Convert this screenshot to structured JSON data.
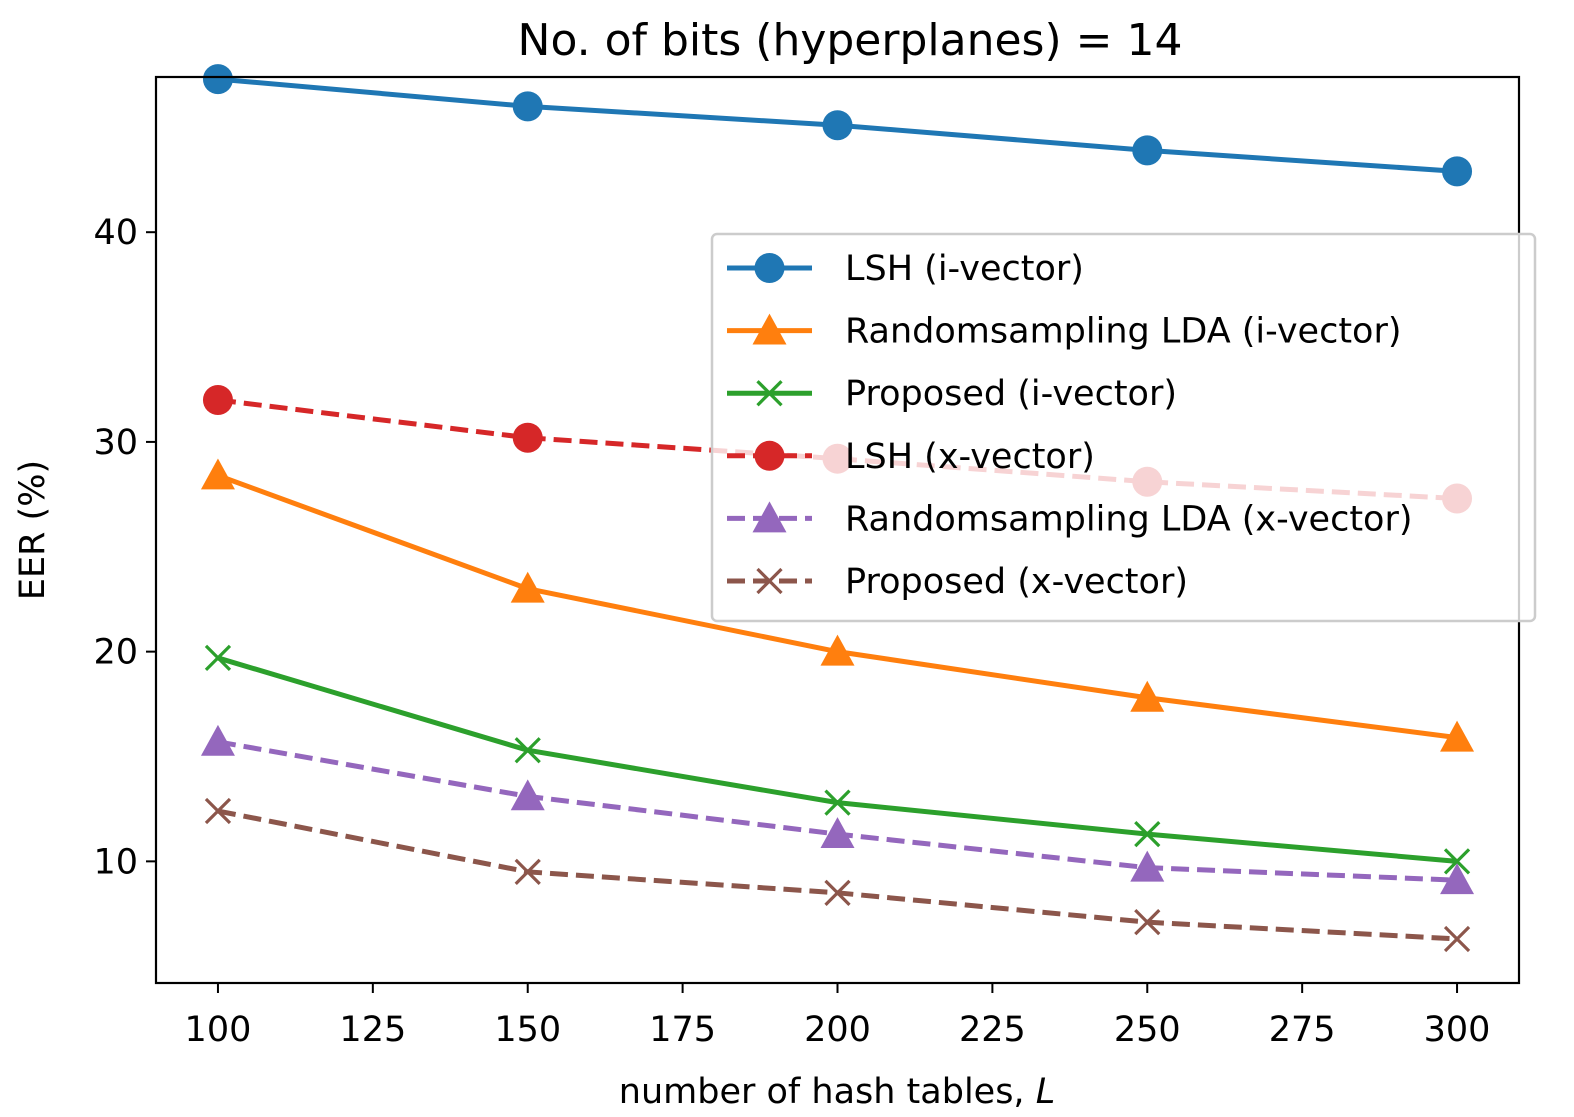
{
  "chart_data": {
    "type": "line",
    "title": "No. of bits (hyperplanes) = 14",
    "xlabel": "number of hash tables, ",
    "xlabel_var": "L",
    "ylabel": "EER (%)",
    "x": [
      100,
      150,
      200,
      250,
      300
    ],
    "xlim": [
      90,
      310
    ],
    "ylim": [
      4.2,
      47.4
    ],
    "xticks": [
      100,
      125,
      150,
      175,
      200,
      225,
      250,
      275,
      300
    ],
    "yticks": [
      10,
      20,
      30,
      40
    ],
    "legend_position": "upper-right",
    "series": [
      {
        "name": "LSH (i-vector)",
        "values": [
          47.3,
          46.0,
          45.1,
          43.9,
          42.9
        ],
        "color": "#1f77b4",
        "marker": "circle",
        "linestyle": "solid"
      },
      {
        "name": "Randomsampling LDA (i-vector)",
        "values": [
          28.4,
          23.0,
          20.0,
          17.8,
          15.9
        ],
        "color": "#ff7f0e",
        "marker": "triangle",
        "linestyle": "solid"
      },
      {
        "name": "Proposed (i-vector)",
        "values": [
          19.7,
          15.3,
          12.8,
          11.3,
          10.0
        ],
        "color": "#2ca02c",
        "marker": "x",
        "linestyle": "solid"
      },
      {
        "name": "LSH (x-vector)",
        "values": [
          32.0,
          30.2,
          29.2,
          28.1,
          27.3
        ],
        "color": "#d62728",
        "marker": "circle",
        "linestyle": "dashed"
      },
      {
        "name": "Randomsampling LDA (x-vector)",
        "values": [
          15.7,
          13.1,
          11.3,
          9.7,
          9.1
        ],
        "color": "#9467bd",
        "marker": "triangle",
        "linestyle": "dashed"
      },
      {
        "name": "Proposed (x-vector)",
        "values": [
          12.4,
          9.5,
          8.5,
          7.1,
          6.3
        ],
        "color": "#8c564b",
        "marker": "x",
        "linestyle": "dashed"
      }
    ]
  }
}
